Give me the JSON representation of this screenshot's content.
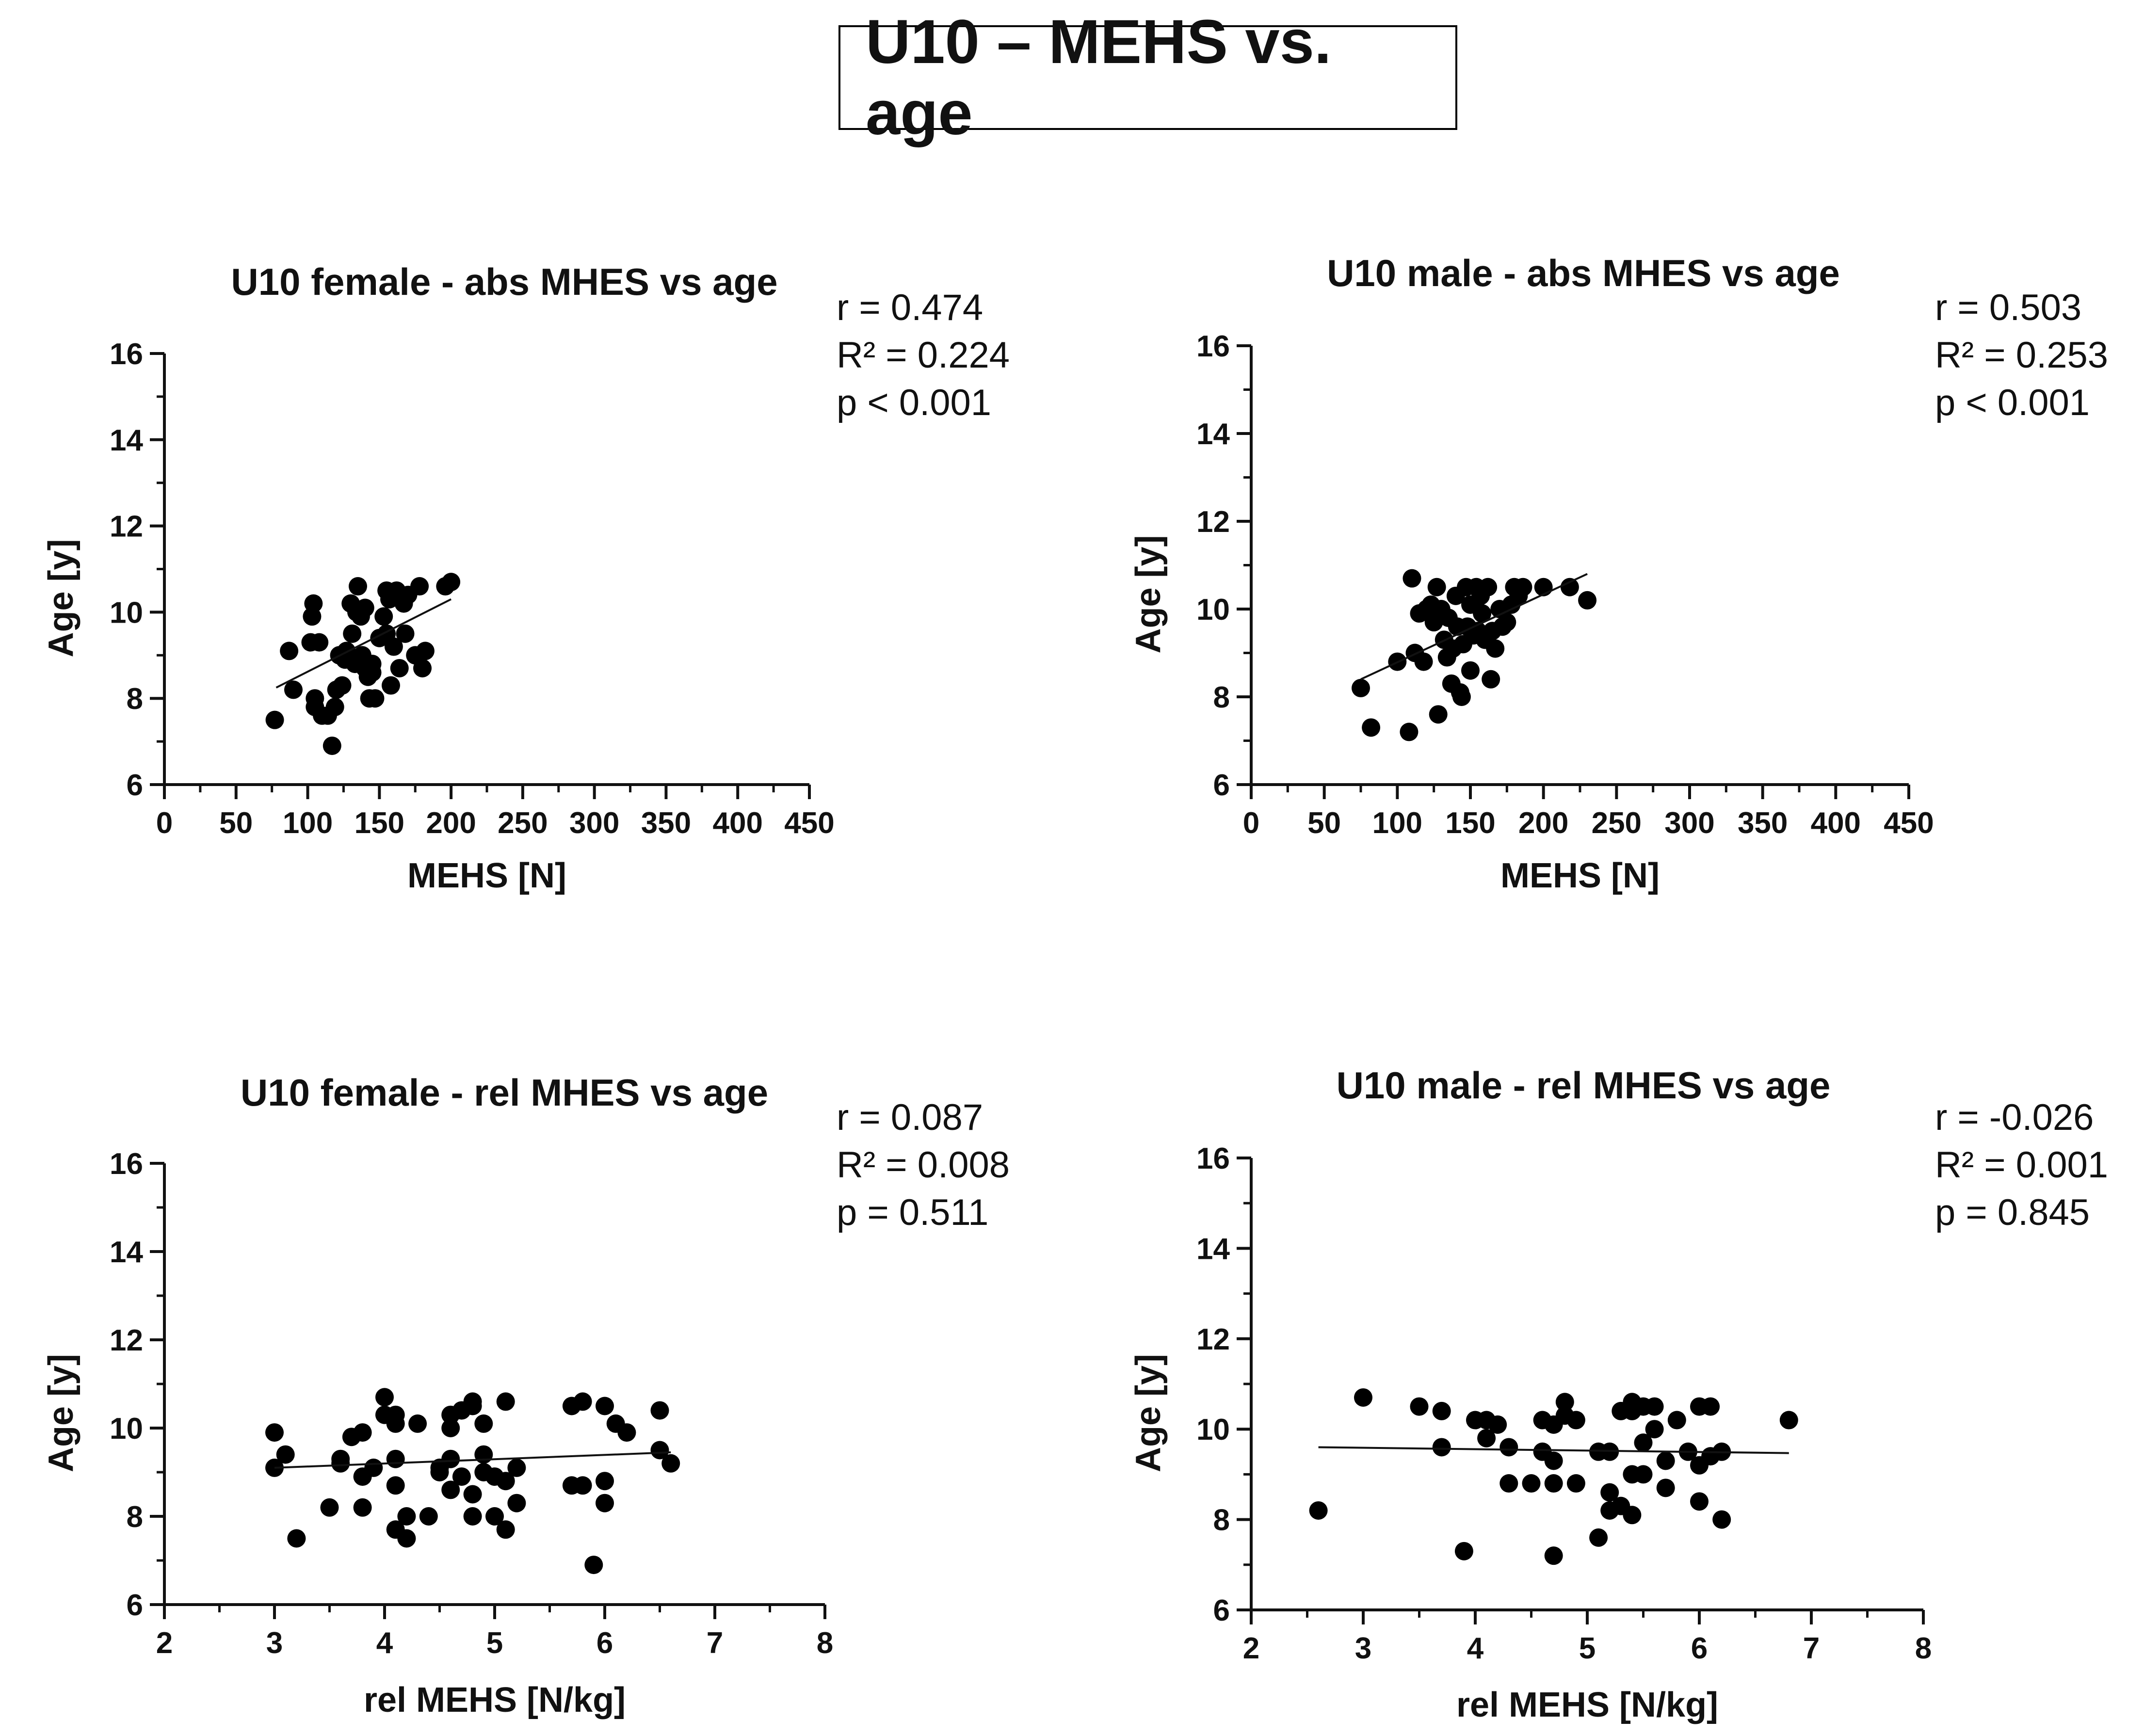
{
  "page_title": "U10 – MEHS vs. age",
  "colors": {
    "ink": "#111111",
    "marker": "#000000"
  },
  "chart_data": [
    {
      "type": "scatter",
      "id": "female_abs",
      "title": "U10 female - abs MHES vs age",
      "xlabel": "MEHS [N]",
      "ylabel": "Age [y]",
      "xlim": [
        0,
        450
      ],
      "ylim": [
        6,
        16
      ],
      "xticks": [
        0,
        50,
        100,
        150,
        200,
        250,
        300,
        350,
        400,
        450
      ],
      "yticks": [
        6,
        8,
        10,
        12,
        14,
        16
      ],
      "xminor": 25,
      "yminor": 1,
      "stats": [
        "r = 0.474",
        "R² = 0.224",
        "p < 0.001"
      ],
      "trend": {
        "x": [
          78,
          200
        ],
        "y": [
          8.25,
          10.3
        ]
      },
      "points": [
        [
          77,
          7.5
        ],
        [
          87,
          9.1
        ],
        [
          90,
          8.2
        ],
        [
          102,
          9.3
        ],
        [
          103,
          9.9
        ],
        [
          104,
          10.2
        ],
        [
          105,
          7.8
        ],
        [
          105,
          8.0
        ],
        [
          108,
          9.3
        ],
        [
          110,
          7.6
        ],
        [
          114,
          7.6
        ],
        [
          117,
          6.9
        ],
        [
          119,
          7.8
        ],
        [
          120,
          8.2
        ],
        [
          122,
          9.0
        ],
        [
          124,
          8.3
        ],
        [
          126,
          8.9
        ],
        [
          127,
          9.1
        ],
        [
          130,
          10.2
        ],
        [
          131,
          9.5
        ],
        [
          133,
          8.8
        ],
        [
          134,
          10.0
        ],
        [
          135,
          10.6
        ],
        [
          137,
          9.9
        ],
        [
          138,
          9.0
        ],
        [
          140,
          10.1
        ],
        [
          140,
          8.7
        ],
        [
          142,
          8.5
        ],
        [
          143,
          8.0
        ],
        [
          145,
          8.6
        ],
        [
          145,
          8.8
        ],
        [
          147,
          8.0
        ],
        [
          150,
          9.4
        ],
        [
          153,
          9.9
        ],
        [
          155,
          10.5
        ],
        [
          155,
          9.5
        ],
        [
          157,
          10.3
        ],
        [
          158,
          8.3
        ],
        [
          160,
          9.2
        ],
        [
          162,
          10.5
        ],
        [
          164,
          8.7
        ],
        [
          167,
          10.2
        ],
        [
          168,
          9.5
        ],
        [
          170,
          10.4
        ],
        [
          175,
          9.0
        ],
        [
          178,
          10.6
        ],
        [
          180,
          8.7
        ],
        [
          182,
          9.1
        ],
        [
          196,
          10.6
        ],
        [
          200,
          10.7
        ]
      ]
    },
    {
      "type": "scatter",
      "id": "male_abs",
      "title": "U10 male - abs MHES vs age",
      "xlabel": "MEHS [N]",
      "ylabel": "Age [y]",
      "xlim": [
        0,
        450
      ],
      "ylim": [
        6,
        16
      ],
      "xticks": [
        0,
        50,
        100,
        150,
        200,
        250,
        300,
        350,
        400,
        450
      ],
      "yticks": [
        6,
        8,
        10,
        12,
        14,
        16
      ],
      "xminor": 25,
      "yminor": 1,
      "stats": [
        "r = 0.503",
        "R² = 0.253",
        "p < 0.001"
      ],
      "trend": {
        "x": [
          75,
          230
        ],
        "y": [
          8.4,
          10.8
        ]
      },
      "points": [
        [
          75,
          8.2
        ],
        [
          82,
          7.3
        ],
        [
          100,
          8.8
        ],
        [
          108,
          7.2
        ],
        [
          110,
          10.7
        ],
        [
          112,
          9.0
        ],
        [
          115,
          9.9
        ],
        [
          118,
          8.8
        ],
        [
          120,
          10.0
        ],
        [
          123,
          10.1
        ],
        [
          125,
          9.7
        ],
        [
          127,
          10.5
        ],
        [
          128,
          7.6
        ],
        [
          130,
          10.0
        ],
        [
          132,
          9.3
        ],
        [
          134,
          8.9
        ],
        [
          135,
          9.8
        ],
        [
          137,
          8.3
        ],
        [
          138,
          9.1
        ],
        [
          140,
          10.3
        ],
        [
          141,
          9.6
        ],
        [
          143,
          8.1
        ],
        [
          144,
          8.0
        ],
        [
          145,
          9.2
        ],
        [
          147,
          10.5
        ],
        [
          148,
          9.6
        ],
        [
          150,
          10.1
        ],
        [
          150,
          8.6
        ],
        [
          152,
          9.4
        ],
        [
          154,
          10.5
        ],
        [
          155,
          9.5
        ],
        [
          157,
          10.3
        ],
        [
          158,
          9.9
        ],
        [
          160,
          9.3
        ],
        [
          162,
          10.5
        ],
        [
          164,
          8.4
        ],
        [
          165,
          9.5
        ],
        [
          167,
          9.1
        ],
        [
          170,
          10.0
        ],
        [
          172,
          9.6
        ],
        [
          175,
          9.7
        ],
        [
          178,
          10.1
        ],
        [
          180,
          10.5
        ],
        [
          183,
          10.3
        ],
        [
          186,
          10.5
        ],
        [
          200,
          10.5
        ],
        [
          218,
          10.5
        ],
        [
          230,
          10.2
        ]
      ]
    },
    {
      "type": "scatter",
      "id": "female_rel",
      "title": "U10 female - rel MHES vs age",
      "xlabel": "rel MEHS [N/kg]",
      "ylabel": "Age [y]",
      "xlim": [
        2,
        8
      ],
      "ylim": [
        6,
        16
      ],
      "xticks": [
        2,
        3,
        4,
        5,
        6,
        7,
        8
      ],
      "yticks": [
        6,
        8,
        10,
        12,
        14,
        16
      ],
      "xminor": 0.5,
      "yminor": 1,
      "stats": [
        "r = 0.087",
        "R² = 0.008",
        "p = 0.511"
      ],
      "trend": {
        "x": [
          3.0,
          6.6
        ],
        "y": [
          9.1,
          9.45
        ]
      },
      "points": [
        [
          3.0,
          9.9
        ],
        [
          3.0,
          9.1
        ],
        [
          3.1,
          9.4
        ],
        [
          3.2,
          7.5
        ],
        [
          3.5,
          8.2
        ],
        [
          3.6,
          9.2
        ],
        [
          3.6,
          9.3
        ],
        [
          3.7,
          9.8
        ],
        [
          3.8,
          9.9
        ],
        [
          3.8,
          8.9
        ],
        [
          3.8,
          8.2
        ],
        [
          3.9,
          9.1
        ],
        [
          4.0,
          10.7
        ],
        [
          4.0,
          10.3
        ],
        [
          4.1,
          10.1
        ],
        [
          4.1,
          10.3
        ],
        [
          4.1,
          9.3
        ],
        [
          4.1,
          8.7
        ],
        [
          4.1,
          7.7
        ],
        [
          4.2,
          8.0
        ],
        [
          4.2,
          7.5
        ],
        [
          4.3,
          10.1
        ],
        [
          4.4,
          8.0
        ],
        [
          4.5,
          9.1
        ],
        [
          4.5,
          9.0
        ],
        [
          4.6,
          10.3
        ],
        [
          4.6,
          10.0
        ],
        [
          4.6,
          9.3
        ],
        [
          4.6,
          8.6
        ],
        [
          4.7,
          10.4
        ],
        [
          4.7,
          8.9
        ],
        [
          4.8,
          10.5
        ],
        [
          4.8,
          10.6
        ],
        [
          4.8,
          8.5
        ],
        [
          4.8,
          8.0
        ],
        [
          4.9,
          10.1
        ],
        [
          4.9,
          9.4
        ],
        [
          4.9,
          9.0
        ],
        [
          5.0,
          8.9
        ],
        [
          5.0,
          8.0
        ],
        [
          5.1,
          10.6
        ],
        [
          5.1,
          8.8
        ],
        [
          5.1,
          7.7
        ],
        [
          5.2,
          9.1
        ],
        [
          5.2,
          8.3
        ],
        [
          5.7,
          10.5
        ],
        [
          5.7,
          8.7
        ],
        [
          5.8,
          10.6
        ],
        [
          5.8,
          8.7
        ],
        [
          5.9,
          6.9
        ],
        [
          6.0,
          10.5
        ],
        [
          6.0,
          8.8
        ],
        [
          6.0,
          8.3
        ],
        [
          6.1,
          10.1
        ],
        [
          6.2,
          9.9
        ],
        [
          6.5,
          10.4
        ],
        [
          6.5,
          9.5
        ],
        [
          6.6,
          9.2
        ]
      ]
    },
    {
      "type": "scatter",
      "id": "male_rel",
      "title": "U10 male - rel MHES vs age",
      "xlabel": "rel MEHS [N/kg]",
      "ylabel": "Age [y]",
      "xlim": [
        2,
        8
      ],
      "ylim": [
        6,
        16
      ],
      "xticks": [
        2,
        3,
        4,
        5,
        6,
        7,
        8
      ],
      "yticks": [
        6,
        8,
        10,
        12,
        14,
        16
      ],
      "xminor": 0.5,
      "yminor": 1,
      "stats": [
        "r = -0.026",
        "R² = 0.001",
        "p = 0.845"
      ],
      "trend": {
        "x": [
          2.6,
          6.8
        ],
        "y": [
          9.6,
          9.47
        ]
      },
      "points": [
        [
          2.6,
          8.2
        ],
        [
          3.0,
          10.7
        ],
        [
          3.5,
          10.5
        ],
        [
          3.7,
          10.4
        ],
        [
          3.7,
          9.6
        ],
        [
          3.9,
          7.3
        ],
        [
          4.0,
          10.2
        ],
        [
          4.1,
          10.2
        ],
        [
          4.1,
          9.8
        ],
        [
          4.2,
          10.1
        ],
        [
          4.3,
          9.6
        ],
        [
          4.3,
          8.8
        ],
        [
          4.5,
          8.8
        ],
        [
          4.6,
          10.2
        ],
        [
          4.6,
          9.5
        ],
        [
          4.7,
          10.1
        ],
        [
          4.7,
          9.3
        ],
        [
          4.7,
          8.8
        ],
        [
          4.7,
          7.2
        ],
        [
          4.8,
          10.6
        ],
        [
          4.8,
          10.3
        ],
        [
          4.9,
          10.2
        ],
        [
          4.9,
          8.8
        ],
        [
          5.1,
          9.5
        ],
        [
          5.1,
          7.6
        ],
        [
          5.2,
          9.5
        ],
        [
          5.2,
          8.6
        ],
        [
          5.2,
          8.2
        ],
        [
          5.3,
          10.4
        ],
        [
          5.3,
          8.3
        ],
        [
          5.4,
          10.6
        ],
        [
          5.4,
          10.4
        ],
        [
          5.4,
          9.0
        ],
        [
          5.4,
          8.1
        ],
        [
          5.5,
          10.5
        ],
        [
          5.5,
          9.7
        ],
        [
          5.5,
          9.0
        ],
        [
          5.6,
          10.5
        ],
        [
          5.6,
          10.0
        ],
        [
          5.7,
          9.3
        ],
        [
          5.7,
          8.7
        ],
        [
          5.8,
          10.2
        ],
        [
          5.9,
          9.5
        ],
        [
          6.0,
          10.5
        ],
        [
          6.0,
          9.2
        ],
        [
          6.0,
          8.4
        ],
        [
          6.1,
          10.5
        ],
        [
          6.1,
          9.4
        ],
        [
          6.2,
          9.5
        ],
        [
          6.2,
          8.0
        ],
        [
          6.8,
          10.2
        ]
      ]
    }
  ]
}
